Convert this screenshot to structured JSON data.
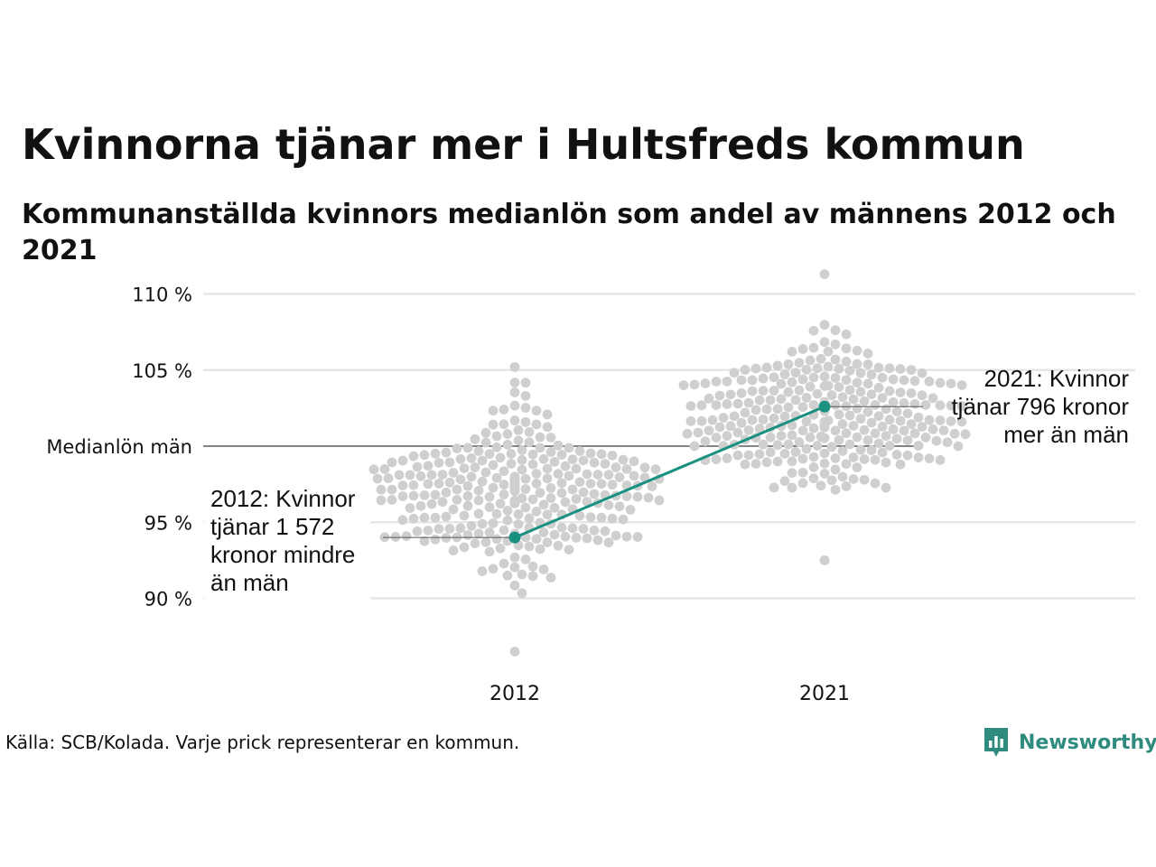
{
  "title": "Kvinnorna tjänar mer i Hultsfreds kommun",
  "subtitle": "Kommunanställda kvinnors medianlön som andel av männens 2012 och 2021",
  "source": "Källa: SCB/Kolada. Varje prick representerar en kommun.",
  "brand": {
    "name": "Newsworthy",
    "logo_icon": "newsworthy-logo-icon"
  },
  "colors": {
    "dots": "#cfcfcf",
    "highlight": "#1a9080",
    "grid": "#e6e6e6",
    "reference_line": "#3a3a3a",
    "brand": "#2e8b7e"
  },
  "chart_data": {
    "type": "scatter",
    "x": [
      "2012",
      "2021"
    ],
    "ylim": [
      86,
      111.5
    ],
    "y_ticks": [
      {
        "value": 90,
        "label": "90 %"
      },
      {
        "value": 95,
        "label": "95 %"
      },
      {
        "value": 100,
        "label": "Medianlön män"
      },
      {
        "value": 105,
        "label": "105 %"
      },
      {
        "value": 110,
        "label": "110 %"
      }
    ],
    "reference_line": {
      "value": 100,
      "label": "Medianlön män"
    },
    "distributions": [
      {
        "x": "2012",
        "min": 86.5,
        "max": 105.2,
        "center": 97.0,
        "spread": 2.6,
        "count": 290
      },
      {
        "x": "2021",
        "min": 92.5,
        "max": 111.3,
        "center": 101.8,
        "spread": 2.4,
        "count": 290
      }
    ],
    "highlight": {
      "name": "Hultsfred",
      "points": [
        {
          "x": "2012",
          "y": 94.0
        },
        {
          "x": "2021",
          "y": 102.6
        }
      ]
    },
    "annotations": [
      {
        "x": "2012",
        "lines": [
          "2012: Kvinnor",
          "tjänar 1 572",
          "kronor mindre",
          "än män"
        ]
      },
      {
        "x": "2021",
        "lines": [
          "2021: Kvinnor",
          "tjänar 796 kronor",
          "mer än män"
        ]
      }
    ]
  }
}
